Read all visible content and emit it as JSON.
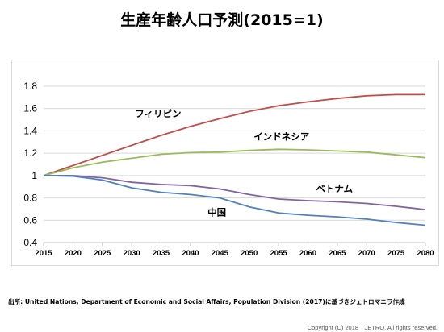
{
  "title": "生産年齢人口予測(2015=1)",
  "source": "出所: United Nations, Department of Economic and Social Affairs, Population Division (2017)に基づきジェトロマニラ作成",
  "copyright": "Copyright (C) 2018　JETRO. All rights reserved.",
  "chart_data": {
    "type": "line",
    "title": "生産年齢人口予測(2015=1)",
    "xlabel": "",
    "ylabel": "",
    "x": [
      2015,
      2020,
      2025,
      2030,
      2035,
      2040,
      2045,
      2050,
      2055,
      2060,
      2065,
      2070,
      2075,
      2080
    ],
    "ylim": [
      0.4,
      1.8
    ],
    "yticks": [
      "0.4",
      "0.6",
      "0.8",
      "1",
      "1.2",
      "1.4",
      "1.6",
      "1.8"
    ],
    "grid": true,
    "legend": "inline labels",
    "series": [
      {
        "name": "フィリピン",
        "color": "#c0504d",
        "values": [
          1.0,
          1.09,
          1.18,
          1.27,
          1.36,
          1.44,
          1.51,
          1.575,
          1.625,
          1.66,
          1.69,
          1.715,
          1.725,
          1.725
        ]
      },
      {
        "name": "インドネシア",
        "color": "#9bbb59",
        "values": [
          1.0,
          1.07,
          1.12,
          1.155,
          1.19,
          1.205,
          1.21,
          1.225,
          1.235,
          1.23,
          1.22,
          1.21,
          1.185,
          1.16
        ]
      },
      {
        "name": "ベトナム",
        "color": "#8064a2",
        "values": [
          1.0,
          1.0,
          0.98,
          0.94,
          0.92,
          0.91,
          0.88,
          0.83,
          0.79,
          0.775,
          0.765,
          0.75,
          0.725,
          0.695
        ]
      },
      {
        "name": "中国",
        "color": "#4f81bd",
        "values": [
          1.0,
          0.995,
          0.96,
          0.89,
          0.85,
          0.83,
          0.8,
          0.72,
          0.665,
          0.645,
          0.63,
          0.61,
          0.58,
          0.555
        ]
      }
    ]
  }
}
